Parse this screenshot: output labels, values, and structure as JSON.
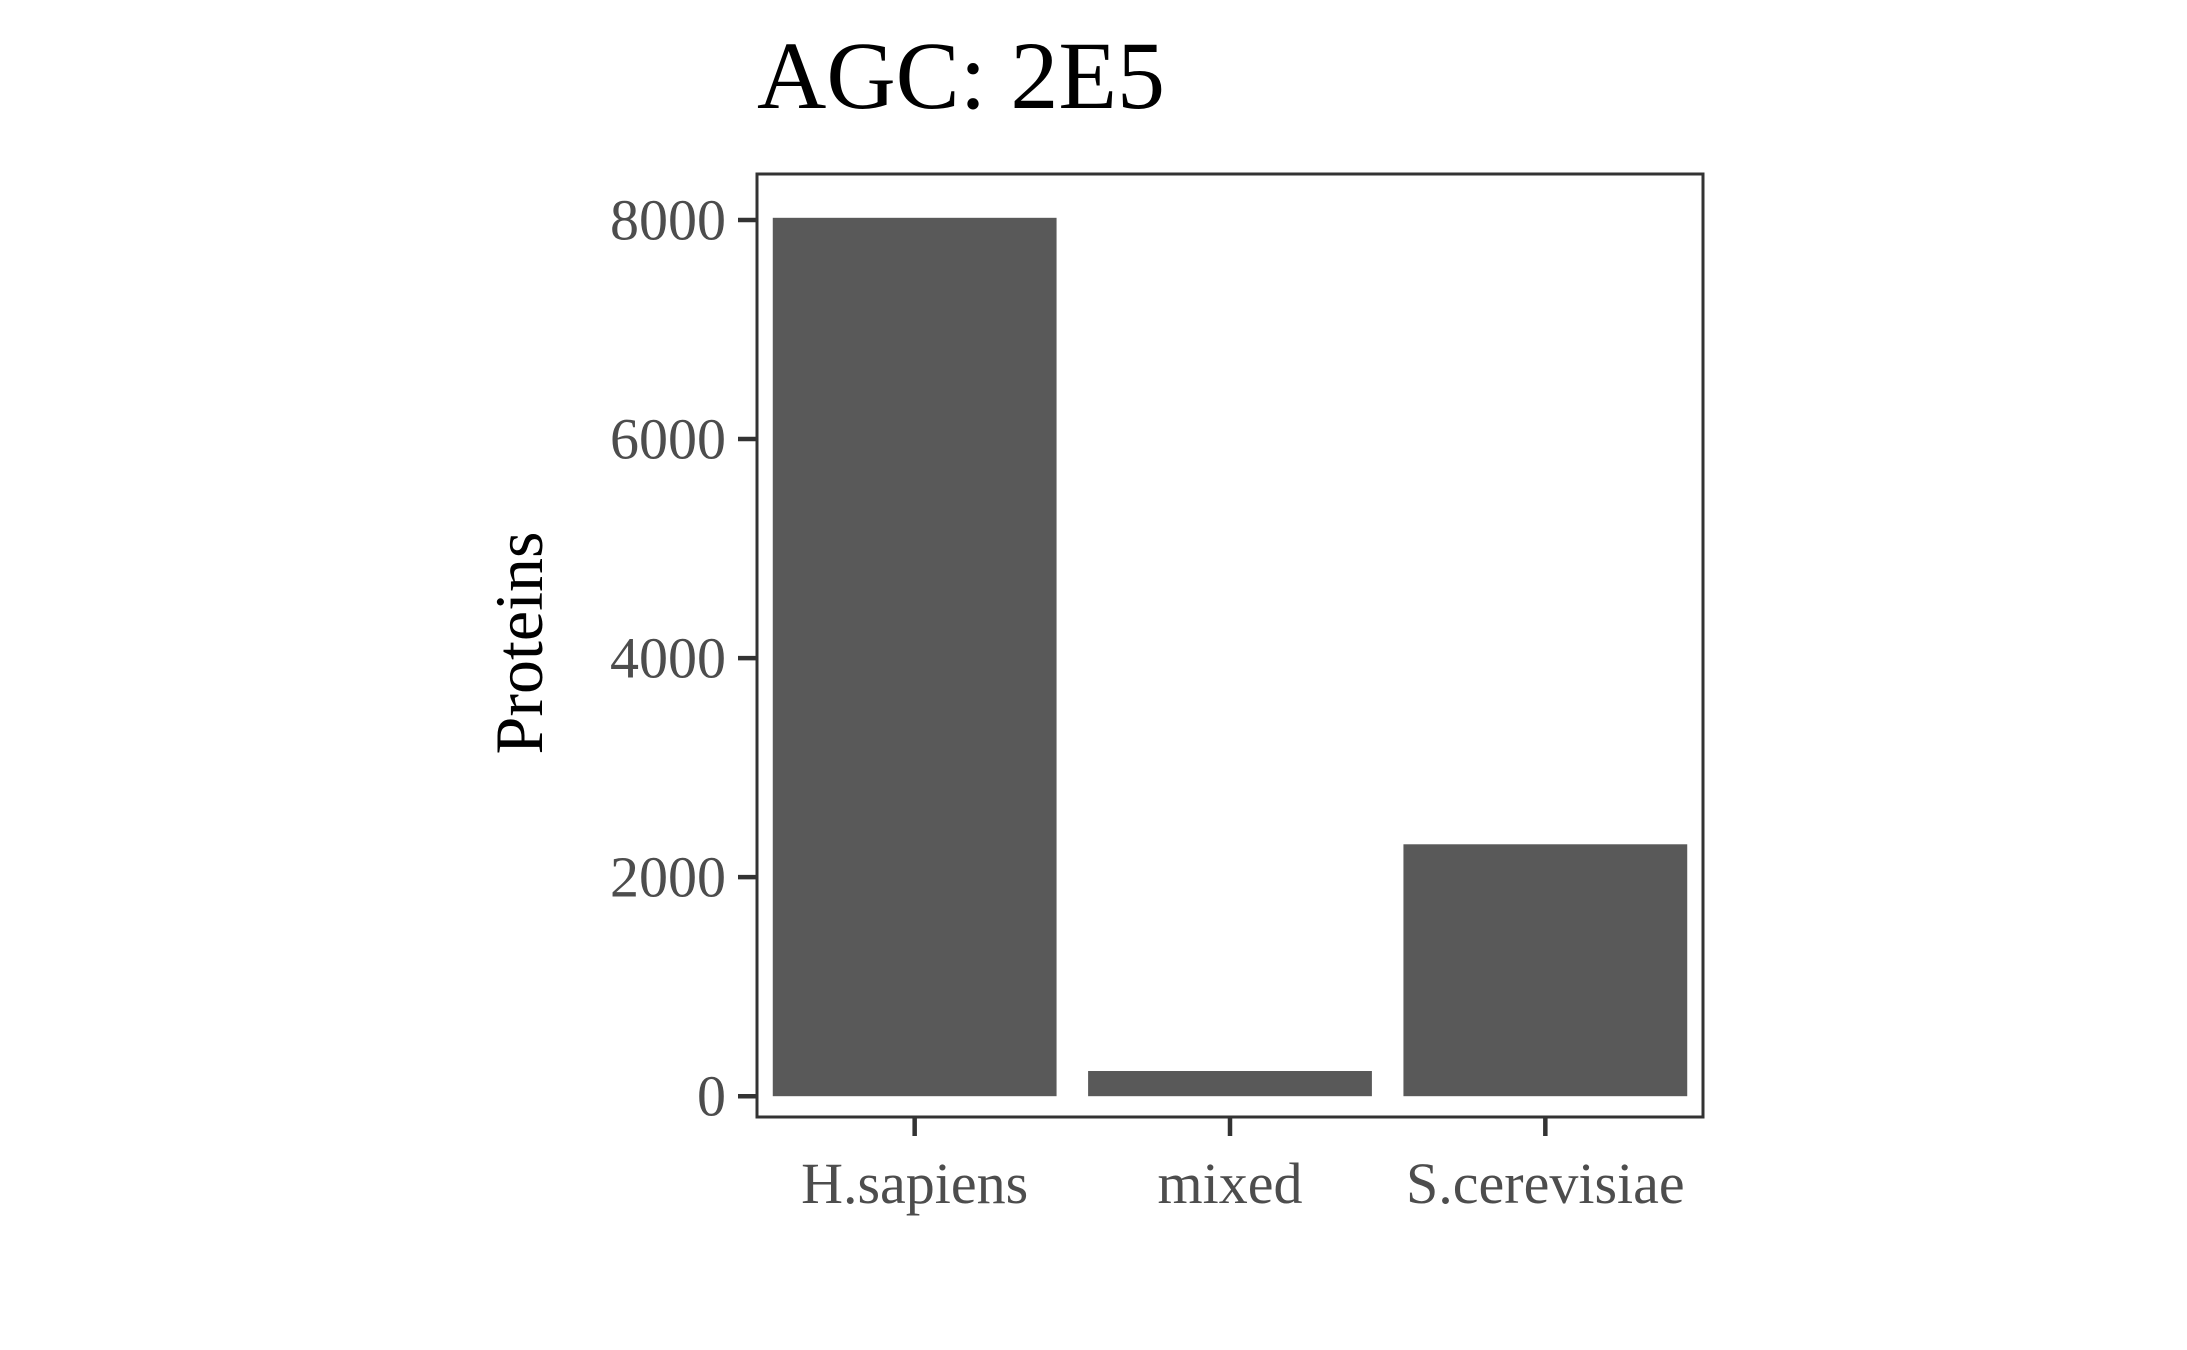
{
  "chart_data": {
    "type": "bar",
    "title": "AGC: 2E5",
    "xlabel": "",
    "ylabel": "Proteins",
    "categories": [
      "H.sapiens",
      "mixed",
      "S.cerevisiae"
    ],
    "values": [
      8020,
      230,
      2300
    ],
    "ylim": [
      -190,
      8420
    ],
    "yticks": [
      0,
      2000,
      4000,
      6000,
      8000
    ],
    "bar_color": "#595959",
    "grid": false,
    "legend": "none"
  }
}
